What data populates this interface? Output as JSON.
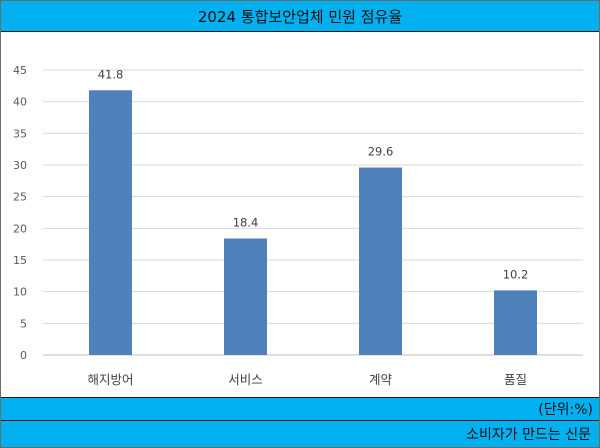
{
  "header": {
    "title": "2024 통합보안업체 민원 점유율"
  },
  "footer": {
    "unit": "(단위:%)",
    "source": "소비자가 만드는 신문"
  },
  "colors": {
    "header_bg": "#00b0f0",
    "bar": "#4f81bd",
    "grid": "#d9d9d9"
  },
  "chart_data": {
    "type": "bar",
    "title": "2024 통합보안업체 민원 점유율",
    "xlabel": "",
    "ylabel": "",
    "categories": [
      "해지방어",
      "서비스",
      "계약",
      "품질"
    ],
    "values": [
      41.8,
      18.4,
      29.6,
      10.2
    ],
    "value_labels": [
      "41.8",
      "18.4",
      "29.6",
      "10.2"
    ],
    "ylim": [
      0,
      45
    ],
    "yticks": [
      0,
      5,
      10,
      15,
      20,
      25,
      30,
      35,
      40,
      45
    ],
    "unit": "(단위:%)",
    "grid": true,
    "legend": "none"
  }
}
